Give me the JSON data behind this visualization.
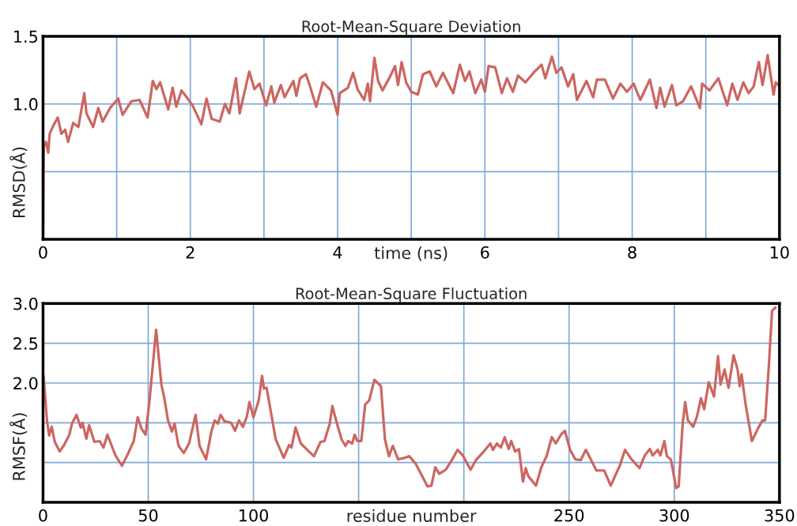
{
  "chart_data": [
    {
      "type": "line",
      "title": "Root-Mean-Square Deviation",
      "xlabel": "time (ns)",
      "ylabel": "RMSD(Å)",
      "grid": true,
      "xlim": [
        0,
        10
      ],
      "ylim": [
        0,
        1.5
      ],
      "xticks": [
        0,
        {
          "value": 1,
          "label": null
        },
        2,
        {
          "value": 3,
          "label": null
        },
        4,
        {
          "value": 5,
          "label": null
        },
        6,
        {
          "value": 7,
          "label": null
        },
        8,
        {
          "value": 9,
          "label": null
        },
        10
      ],
      "yticks": [
        {
          "value": 0.5,
          "label": null
        },
        {
          "value": 1,
          "label": "1.0"
        },
        1.5
      ],
      "series": [
        {
          "color": "#cc6660",
          "x": [
            0,
            0.01,
            0.04,
            0.07,
            0.09,
            0.14,
            0.2,
            0.25,
            0.3,
            0.34,
            0.41,
            0.48,
            0.56,
            0.59,
            0.68,
            0.75,
            0.81,
            0.91,
            1.02,
            1.08,
            1.2,
            1.31,
            1.42,
            1.49,
            1.54,
            1.59,
            1.7,
            1.76,
            1.81,
            1.88,
            1.95,
            2.03,
            2.15,
            2.22,
            2.29,
            2.4,
            2.47,
            2.53,
            2.62,
            2.67,
            2.8,
            2.87,
            2.94,
            3.03,
            3.1,
            3.14,
            3.23,
            3.28,
            3.4,
            3.44,
            3.49,
            3.57,
            3.62,
            3.71,
            3.8,
            3.91,
            4.0,
            4.03,
            4.14,
            4.21,
            4.27,
            4.36,
            4.41,
            4.44,
            4.5,
            4.55,
            4.61,
            4.71,
            4.78,
            4.82,
            4.87,
            4.93,
            5.0,
            5.09,
            5.16,
            5.25,
            5.34,
            5.43,
            5.57,
            5.66,
            5.73,
            5.79,
            5.87,
            5.95,
            6.0,
            6.05,
            6.14,
            6.23,
            6.3,
            6.38,
            6.45,
            6.55,
            6.66,
            6.77,
            6.82,
            6.91,
            6.97,
            7.04,
            7.13,
            7.2,
            7.25,
            7.38,
            7.47,
            7.52,
            7.63,
            7.74,
            7.84,
            7.93,
            8.02,
            8.11,
            8.24,
            8.33,
            8.38,
            8.44,
            8.54,
            8.6,
            8.69,
            8.8,
            8.92,
            8.95,
            9.05,
            9.17,
            9.29,
            9.36,
            9.43,
            9.51,
            9.58,
            9.65,
            9.72,
            9.77,
            9.84,
            9.92,
            9.95,
            10.0
          ],
          "values": [
            0,
            0.68,
            0.72,
            0.64,
            0.78,
            0.84,
            0.9,
            0.78,
            0.81,
            0.72,
            0.86,
            0.83,
            1.08,
            0.93,
            0.83,
            0.97,
            0.87,
            0.97,
            1.04,
            0.92,
            1.02,
            1.03,
            0.9,
            1.17,
            1.11,
            1.16,
            0.96,
            1.12,
            0.98,
            1.1,
            1.05,
            0.99,
            0.85,
            1.04,
            0.89,
            0.87,
            1.0,
            0.93,
            1.19,
            0.93,
            1.24,
            1.11,
            1.15,
            0.99,
            1.13,
            1.01,
            1.14,
            1.05,
            1.17,
            1.06,
            1.19,
            1.22,
            1.14,
            0.98,
            1.16,
            1.1,
            0.92,
            1.08,
            1.12,
            1.23,
            1.11,
            1.03,
            1.15,
            1.02,
            1.34,
            1.17,
            1.1,
            1.2,
            1.28,
            1.14,
            1.31,
            1.16,
            1.09,
            1.07,
            1.22,
            1.24,
            1.13,
            1.23,
            1.08,
            1.29,
            1.17,
            1.24,
            1.08,
            1.18,
            1.09,
            1.28,
            1.27,
            1.08,
            1.19,
            1.09,
            1.21,
            1.16,
            1.23,
            1.29,
            1.19,
            1.35,
            1.23,
            1.27,
            1.13,
            1.22,
            1.03,
            1.17,
            1.05,
            1.18,
            1.18,
            1.04,
            1.15,
            1.09,
            1.15,
            1.03,
            1.18,
            0.97,
            1.12,
            0.98,
            1.14,
            0.99,
            1.02,
            1.13,
            0.97,
            1.15,
            1.1,
            1.19,
            0.99,
            1.15,
            1.03,
            1.16,
            1.08,
            1.13,
            1.31,
            1.14,
            1.36,
            1.07,
            1.16,
            1.13
          ]
        }
      ]
    },
    {
      "type": "line",
      "title": "Root-Mean-Square Fluctuation",
      "xlabel": "residue number",
      "ylabel": "RMSF(Å)",
      "grid": true,
      "xlim": [
        0,
        350
      ],
      "ylim": [
        0.5,
        3.0
      ],
      "xticks": [
        0,
        50,
        100,
        {
          "value": 150,
          "label": null
        },
        {
          "value": 200,
          "label": null
        },
        250,
        300,
        350
      ],
      "yticks": [
        {
          "value": 1,
          "label": null
        },
        {
          "value": 1.5,
          "label": null
        },
        {
          "value": 2,
          "label": "2.0"
        },
        2.5,
        {
          "value": 3,
          "label": "3.0"
        }
      ],
      "series": [
        {
          "color": "#cc6660",
          "x": [
            0.25,
            1.9,
            2.9,
            4.1,
            5.6,
            7.9,
            10,
            12.5,
            13.75,
            15.9,
            17.9,
            18.75,
            20.6,
            21.9,
            24.4,
            26.9,
            28.75,
            30.6,
            34.4,
            37.5,
            40,
            43.1,
            45,
            46.9,
            48.75,
            50.6,
            53.75,
            56.25,
            57.5,
            59.4,
            61.25,
            62.5,
            64.4,
            66.9,
            69.4,
            72.5,
            74.4,
            77.5,
            80,
            81.6,
            83.1,
            84.4,
            86.25,
            89.4,
            91.25,
            93.1,
            95,
            96.9,
            98.1,
            100,
            102.5,
            104.1,
            105,
            106.25,
            110.6,
            114.4,
            116.9,
            118.1,
            120,
            122.5,
            125.6,
            128.75,
            131.9,
            133.75,
            136.25,
            137.5,
            139.4,
            141.9,
            143.75,
            145,
            146.9,
            148.1,
            149.4,
            151.25,
            153.1,
            155,
            157.5,
            160.6,
            162.5,
            164.4,
            166.25,
            168.75,
            171.9,
            174,
            177,
            180.2,
            182.7,
            184.6,
            186.4,
            188.3,
            191.4,
            194.5,
            197,
            199.5,
            203.2,
            205.7,
            209.5,
            212.6,
            213.8,
            215.7,
            217.6,
            219.4,
            221.3,
            222.5,
            224.4,
            226.2,
            228.1,
            229.4,
            230.6,
            234.3,
            236.8,
            239.3,
            241.8,
            243.7,
            246.1,
            248,
            250.5,
            253,
            255.5,
            258,
            263,
            266.7,
            269.8,
            274.1,
            276.6,
            279.7,
            283.5,
            286,
            288.4,
            289.7,
            292.2,
            293.4,
            295.3,
            296.5,
            298.4,
            300.9,
            302.1,
            304,
            305.2,
            306.5,
            309,
            310.8,
            312.7,
            314.2,
            316.4,
            318.9,
            320.8,
            322,
            323.9,
            325.8,
            328.2,
            330.1,
            331.1,
            332,
            333.8,
            336.9,
            340,
            341.9,
            343.2,
            345,
            346.5,
            348.1
          ],
          "values": [
            2.09,
            1.52,
            1.34,
            1.45,
            1.26,
            1.14,
            1.22,
            1.35,
            1.49,
            1.6,
            1.44,
            1.5,
            1.3,
            1.47,
            1.26,
            1.27,
            1.19,
            1.35,
            1.09,
            0.96,
            1.09,
            1.27,
            1.57,
            1.42,
            1.35,
            1.78,
            2.67,
            1.98,
            1.83,
            1.53,
            1.39,
            1.49,
            1.21,
            1.12,
            1.24,
            1.6,
            1.21,
            1.04,
            1.39,
            1.53,
            1.49,
            1.6,
            1.52,
            1.5,
            1.4,
            1.53,
            1.45,
            1.58,
            1.76,
            1.57,
            1.78,
            2.09,
            1.93,
            1.94,
            1.29,
            1.06,
            1.22,
            1.19,
            1.44,
            1.24,
            1.16,
            1.08,
            1.26,
            1.27,
            1.49,
            1.71,
            1.52,
            1.29,
            1.21,
            1.27,
            1.24,
            1.35,
            1.27,
            1.27,
            1.73,
            1.78,
            2.04,
            1.96,
            1.29,
            1.08,
            1.21,
            1.04,
            1.06,
            1.08,
            0.99,
            0.83,
            0.7,
            0.71,
            0.94,
            0.86,
            0.91,
            1.04,
            1.16,
            1.09,
            0.91,
            1.03,
            1.14,
            1.24,
            1.16,
            1.24,
            1.19,
            1.32,
            1.17,
            1.27,
            1.14,
            1.17,
            0.76,
            0.93,
            0.83,
            0.71,
            0.94,
            1.08,
            1.32,
            1.24,
            1.35,
            1.4,
            1.16,
            1.04,
            1.03,
            1.16,
            0.9,
            0.9,
            0.71,
            0.96,
            1.16,
            1.04,
            0.93,
            1.09,
            1.17,
            1.09,
            1.16,
            1.09,
            1.27,
            1.08,
            1.04,
            0.68,
            0.7,
            1.49,
            1.76,
            1.53,
            1.45,
            1.58,
            1.81,
            1.67,
            2.01,
            1.83,
            2.34,
            1.98,
            2.17,
            1.94,
            2.35,
            2.17,
            1.96,
            2.11,
            1.75,
            1.27,
            1.44,
            1.53,
            1.53,
            2.24,
            2.91,
            2.95
          ]
        }
      ]
    }
  ]
}
